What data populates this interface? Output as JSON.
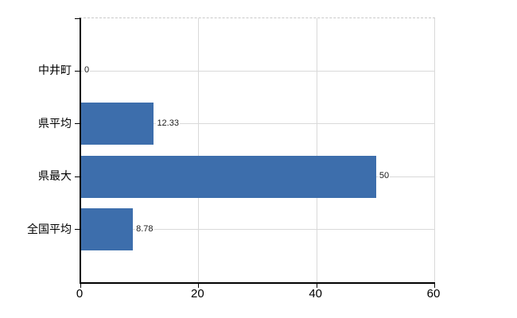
{
  "chart_data": {
    "type": "bar",
    "orientation": "horizontal",
    "title": "",
    "xlabel": "",
    "ylabel": "",
    "categories": [
      "中井町",
      "県平均",
      "県最大",
      "全国平均"
    ],
    "values": [
      0,
      12.33,
      50,
      8.78
    ],
    "value_labels": [
      "0",
      "12.33",
      "50",
      "8.78"
    ],
    "x_ticks": [
      0,
      20,
      40,
      60
    ],
    "x_tick_labels": [
      "0",
      "20",
      "40",
      "60"
    ],
    "xlim": [
      0,
      60
    ],
    "grid": true,
    "legend": "none",
    "colors": {
      "bar": "#3d6eac",
      "gridline": "#d9d9d9",
      "plot_border_dashed": "#c9c9c9",
      "axis": "#000000",
      "text": "#000000",
      "value_label_text": "#1a1a1a",
      "background": "#ffffff"
    }
  }
}
